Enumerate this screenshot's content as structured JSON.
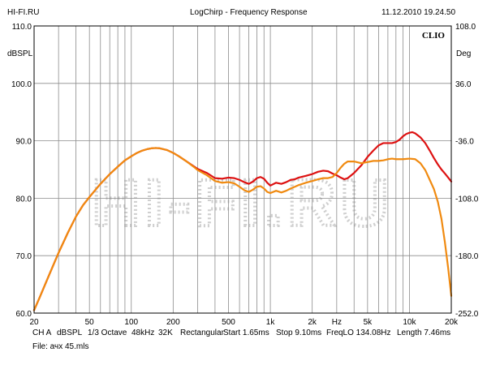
{
  "header": {
    "site": "HI-FI.RU",
    "title": "LogChirp - Frequency Response",
    "datetime": "11.12.2010 19.24.50"
  },
  "watermark": "HI-FI.RU",
  "chart_data": {
    "type": "line",
    "title": "LogChirp - Frequency Response",
    "brand": "CLIO",
    "xscale": "log",
    "xlim": [
      20,
      20000
    ],
    "ylim": [
      60,
      110
    ],
    "y2lim": [
      -252,
      108
    ],
    "ylabel": "dBSPL",
    "y2label": "Deg",
    "xlabel": "Hz",
    "xtick_labels": [
      {
        "v": 20,
        "t": "20"
      },
      {
        "v": 50,
        "t": "50"
      },
      {
        "v": 100,
        "t": "100"
      },
      {
        "v": 200,
        "t": "200"
      },
      {
        "v": 500,
        "t": "500"
      },
      {
        "v": 1000,
        "t": "1k"
      },
      {
        "v": 2000,
        "t": "2k"
      },
      {
        "v": 5000,
        "t": "5k"
      },
      {
        "v": 10000,
        "t": "10k"
      },
      {
        "v": 20000,
        "t": "20k"
      }
    ],
    "yticks": [
      {
        "v": 60,
        "t": "60.0"
      },
      {
        "v": 70,
        "t": "70.0"
      },
      {
        "v": 80,
        "t": "80.0"
      },
      {
        "v": 90,
        "t": "90.0"
      },
      {
        "v": 100,
        "t": "100.0"
      },
      {
        "v": 110,
        "t": "110.0"
      }
    ],
    "y2ticks": [
      {
        "v": -252,
        "t": "-252.0"
      },
      {
        "v": -180,
        "t": "-180.0"
      },
      {
        "v": -108,
        "t": "-108.0"
      },
      {
        "v": -36,
        "t": "-36.0"
      },
      {
        "v": 36,
        "t": "36.0"
      },
      {
        "v": 108,
        "t": "108.0"
      }
    ],
    "series": [
      {
        "name": "red",
        "color": "#dd1111",
        "points": [
          [
            20,
            60.5
          ],
          [
            22,
            62.8
          ],
          [
            25,
            66.0
          ],
          [
            28,
            68.8
          ],
          [
            30,
            70.5
          ],
          [
            35,
            74.0
          ],
          [
            40,
            76.8
          ],
          [
            45,
            78.8
          ],
          [
            50,
            80.2
          ],
          [
            60,
            82.5
          ],
          [
            70,
            84.2
          ],
          [
            80,
            85.5
          ],
          [
            90,
            86.6
          ],
          [
            100,
            87.3
          ],
          [
            110,
            87.9
          ],
          [
            120,
            88.3
          ],
          [
            130,
            88.55
          ],
          [
            140,
            88.7
          ],
          [
            150,
            88.75
          ],
          [
            160,
            88.7
          ],
          [
            180,
            88.4
          ],
          [
            200,
            87.9
          ],
          [
            220,
            87.3
          ],
          [
            250,
            86.4
          ],
          [
            280,
            85.6
          ],
          [
            300,
            85.1
          ],
          [
            350,
            84.4
          ],
          [
            400,
            83.5
          ],
          [
            450,
            83.4
          ],
          [
            500,
            83.6
          ],
          [
            550,
            83.5
          ],
          [
            600,
            83.2
          ],
          [
            650,
            82.8
          ],
          [
            700,
            82.5
          ],
          [
            750,
            82.9
          ],
          [
            800,
            83.5
          ],
          [
            850,
            83.7
          ],
          [
            900,
            83.4
          ],
          [
            950,
            82.7
          ],
          [
            1000,
            82.2
          ],
          [
            1100,
            82.7
          ],
          [
            1200,
            82.5
          ],
          [
            1300,
            82.8
          ],
          [
            1400,
            83.2
          ],
          [
            1500,
            83.3
          ],
          [
            1600,
            83.6
          ],
          [
            1800,
            83.9
          ],
          [
            2000,
            84.2
          ],
          [
            2200,
            84.6
          ],
          [
            2400,
            84.8
          ],
          [
            2600,
            84.7
          ],
          [
            2800,
            84.3
          ],
          [
            3000,
            84.0
          ],
          [
            3200,
            83.6
          ],
          [
            3400,
            83.3
          ],
          [
            3600,
            83.5
          ],
          [
            4000,
            84.4
          ],
          [
            4500,
            85.7
          ],
          [
            5000,
            87.2
          ],
          [
            5500,
            88.3
          ],
          [
            6000,
            89.2
          ],
          [
            6500,
            89.6
          ],
          [
            7000,
            89.6
          ],
          [
            7500,
            89.6
          ],
          [
            8000,
            89.8
          ],
          [
            8500,
            90.2
          ],
          [
            9000,
            90.8
          ],
          [
            9500,
            91.2
          ],
          [
            10000,
            91.4
          ],
          [
            10500,
            91.5
          ],
          [
            11000,
            91.3
          ],
          [
            12000,
            90.6
          ],
          [
            13000,
            89.6
          ],
          [
            14000,
            88.3
          ],
          [
            15000,
            87.0
          ],
          [
            16000,
            85.9
          ],
          [
            17000,
            85.0
          ],
          [
            18000,
            84.3
          ],
          [
            19000,
            83.6
          ],
          [
            20000,
            82.9
          ]
        ]
      },
      {
        "name": "orange",
        "color": "#f08a10",
        "points": [
          [
            20,
            60.5
          ],
          [
            22,
            62.8
          ],
          [
            25,
            66.0
          ],
          [
            28,
            68.8
          ],
          [
            30,
            70.5
          ],
          [
            35,
            74.0
          ],
          [
            40,
            76.8
          ],
          [
            45,
            78.8
          ],
          [
            50,
            80.2
          ],
          [
            60,
            82.5
          ],
          [
            70,
            84.2
          ],
          [
            80,
            85.5
          ],
          [
            90,
            86.6
          ],
          [
            100,
            87.3
          ],
          [
            110,
            87.9
          ],
          [
            120,
            88.3
          ],
          [
            130,
            88.55
          ],
          [
            140,
            88.7
          ],
          [
            150,
            88.75
          ],
          [
            160,
            88.7
          ],
          [
            180,
            88.4
          ],
          [
            200,
            87.9
          ],
          [
            220,
            87.3
          ],
          [
            250,
            86.4
          ],
          [
            280,
            85.5
          ],
          [
            300,
            84.9
          ],
          [
            350,
            84.0
          ],
          [
            400,
            83.0
          ],
          [
            450,
            82.7
          ],
          [
            500,
            82.8
          ],
          [
            550,
            82.6
          ],
          [
            600,
            82.0
          ],
          [
            650,
            81.4
          ],
          [
            700,
            81.1
          ],
          [
            750,
            81.5
          ],
          [
            800,
            82.0
          ],
          [
            850,
            82.1
          ],
          [
            900,
            81.7
          ],
          [
            950,
            81.1
          ],
          [
            1000,
            80.9
          ],
          [
            1100,
            81.3
          ],
          [
            1200,
            81.0
          ],
          [
            1300,
            81.3
          ],
          [
            1400,
            81.7
          ],
          [
            1500,
            82.0
          ],
          [
            1600,
            82.3
          ],
          [
            1800,
            82.7
          ],
          [
            2000,
            83.0
          ],
          [
            2200,
            83.3
          ],
          [
            2400,
            83.5
          ],
          [
            2600,
            83.5
          ],
          [
            2800,
            83.7
          ],
          [
            3000,
            84.4
          ],
          [
            3200,
            85.3
          ],
          [
            3400,
            86.0
          ],
          [
            3600,
            86.4
          ],
          [
            4000,
            86.4
          ],
          [
            4500,
            86.1
          ],
          [
            5000,
            86.3
          ],
          [
            5500,
            86.5
          ],
          [
            6000,
            86.5
          ],
          [
            6500,
            86.6
          ],
          [
            7000,
            86.8
          ],
          [
            7500,
            86.9
          ],
          [
            8000,
            86.8
          ],
          [
            9000,
            86.8
          ],
          [
            10000,
            86.9
          ],
          [
            11000,
            86.8
          ],
          [
            12000,
            86.1
          ],
          [
            13000,
            84.9
          ],
          [
            14000,
            83.2
          ],
          [
            15000,
            81.6
          ],
          [
            16000,
            79.4
          ],
          [
            17000,
            76.4
          ],
          [
            18000,
            72.3
          ],
          [
            19000,
            67.8
          ],
          [
            20000,
            63.0
          ]
        ]
      }
    ]
  },
  "footer": {
    "params": [
      "CH A",
      "dBSPL",
      "1/3 Octave",
      "48kHz",
      "32K",
      "Rectangular",
      "Start 1.65ms",
      "Stop 9.10ms",
      "FreqLO 134.08Hz",
      "Length 7.46ms"
    ],
    "file": "File: ачх 45.mls"
  }
}
